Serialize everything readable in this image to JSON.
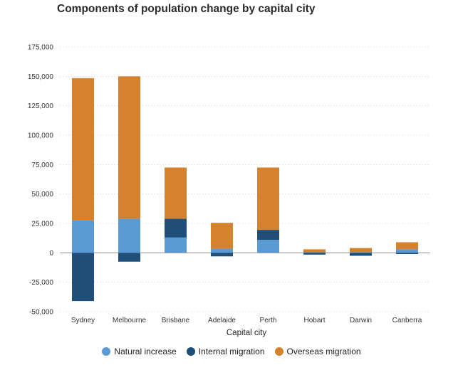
{
  "title": "Components of population change by capital city",
  "chart_data": {
    "type": "bar",
    "stacked": true,
    "title": "Components of population change by capital city",
    "xlabel": "Capital city",
    "ylabel": "",
    "categories": [
      "Sydney",
      "Melbourne",
      "Brisbane",
      "Adelaide",
      "Perth",
      "Hobart",
      "Darwin",
      "Canberra"
    ],
    "series": [
      {
        "name": "Natural increase",
        "color": "#5b9bd5",
        "values": [
          27500,
          29000,
          13000,
          3500,
          11000,
          500,
          600,
          3000
        ]
      },
      {
        "name": "Internal migration",
        "color": "#1f4e79",
        "values": [
          -41000,
          -7500,
          16000,
          -3000,
          8500,
          -1500,
          -2500,
          -1000
        ]
      },
      {
        "name": "Overseas migration",
        "color": "#d4822e",
        "values": [
          121000,
          121000,
          43500,
          22000,
          53000,
          2500,
          3500,
          6000
        ]
      }
    ],
    "ylim": [
      -50000,
      175000
    ],
    "yticks": [
      -50000,
      -25000,
      0,
      25000,
      50000,
      75000,
      100000,
      125000,
      150000,
      175000
    ],
    "ytick_labels": [
      "-50,000",
      "-25,000",
      "0",
      "25,000",
      "50,000",
      "75,000",
      "100,000",
      "125,000",
      "150,000",
      "175,000"
    ],
    "grid": true,
    "legend_position": "bottom-center"
  }
}
